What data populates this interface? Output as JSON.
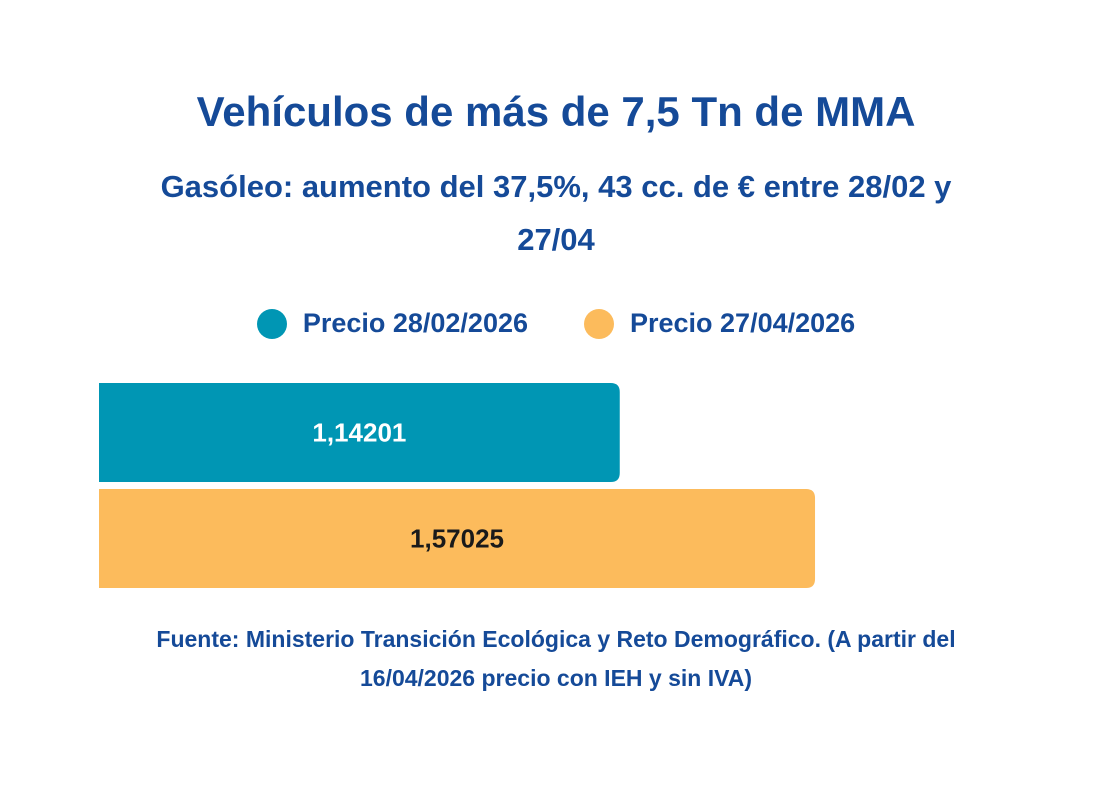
{
  "chart_data": {
    "type": "bar",
    "orientation": "horizontal",
    "title": "Vehículos de más de 7,5 Tn de MMA",
    "subtitle": "Gasóleo: aumento del 37,5%, 43 cc. de € entre 28/02 y 27/04",
    "categories": [
      null
    ],
    "series": [
      {
        "name": "Precio 28/02/2026",
        "color": "#0096b4",
        "values": [
          1.14201
        ],
        "value_labels": [
          "1,14201"
        ]
      },
      {
        "name": "Precio 27/04/2026",
        "color": "#fcbb5c",
        "values": [
          1.57025
        ],
        "value_labels": [
          "1,57025"
        ]
      }
    ],
    "xlim": [
      0,
      2
    ],
    "source": "Fuente: Ministerio Transición Ecológica y Reto Demográfico. (A partir del 16/04/2026 precio con IEH y sin IVA)"
  }
}
